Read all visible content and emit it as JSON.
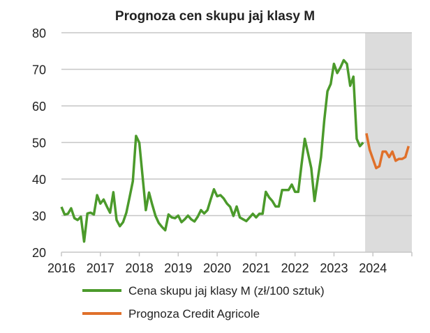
{
  "chart_data": {
    "type": "line",
    "title": "Prognoza cen skupu jaj klasy M",
    "xlabel": "",
    "ylabel": "",
    "ylim": [
      20,
      80
    ],
    "xlim": [
      2016,
      2025
    ],
    "yticks": [
      20,
      30,
      40,
      50,
      60,
      70,
      80
    ],
    "xticks": [
      "2016",
      "2017",
      "2018",
      "2019",
      "2020",
      "2021",
      "2022",
      "2023",
      "2024"
    ],
    "grid": true,
    "legend_position": "bottom",
    "forecast_shaded_from": 2023.8,
    "colors": {
      "actual": "#4b9a2b",
      "forecast": "#e0702a",
      "shade": "#dcdcdc",
      "grid": "#c6c6c6"
    },
    "series": [
      {
        "name": "Cena skupu jaj klasy M (zł/100 sztuk)",
        "start": 2016.0,
        "step_months": 1,
        "values": [
          32.4,
          30.3,
          30.5,
          32,
          29.3,
          28.8,
          29.7,
          22.9,
          30.6,
          30.8,
          30.3,
          35.6,
          33.3,
          34.4,
          32.5,
          30.8,
          36.4,
          28.8,
          27.1,
          28.2,
          30.8,
          35,
          39.4,
          51.8,
          49.9,
          40.8,
          31.5,
          36.3,
          33,
          29.9,
          28,
          26.9,
          26,
          30.3,
          29.5,
          29.3,
          30,
          28.2,
          29,
          30,
          29,
          28.4,
          29.7,
          31.5,
          30.6,
          31.5,
          34.4,
          37.2,
          35.3,
          35.6,
          34.7,
          33.3,
          32.4,
          29.9,
          32.5,
          29.5,
          29,
          28.5,
          29.5,
          30.5,
          29.5,
          30.5,
          30.5,
          36.5,
          35,
          34,
          32.5,
          32.5,
          37,
          37,
          37,
          38.5,
          36.5,
          36.5,
          44,
          51,
          47,
          43,
          34,
          40,
          46,
          56,
          64,
          66,
          71.5,
          69,
          70.5,
          72.5,
          71.5,
          65.5,
          68,
          51,
          49,
          50
        ]
      },
      {
        "name": "Prognoza Credit Agricole",
        "start": 2023.8333,
        "step_months": 1,
        "values": [
          52.5,
          48,
          45.5,
          43,
          43.5,
          47.5,
          47.5,
          46,
          47.5,
          45,
          45.5,
          45.5,
          46,
          49
        ]
      }
    ]
  }
}
